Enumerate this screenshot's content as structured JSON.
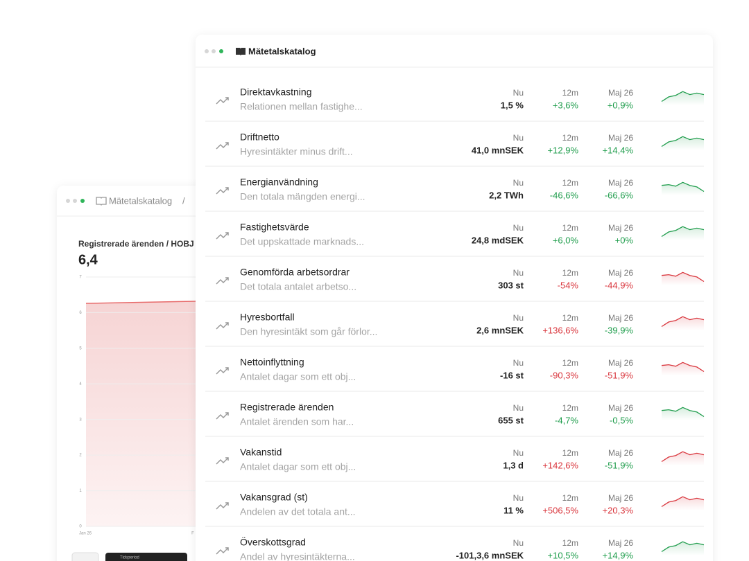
{
  "back_window": {
    "title": "Mätetalskatalog",
    "separator": "/",
    "chart_title": "Registrerade ärenden / HOBJ",
    "current_value": "6,4",
    "yticks": [
      "0",
      "1",
      "2",
      "3",
      "4",
      "5",
      "6",
      "7"
    ],
    "x_labels": [
      "Jan 26",
      "F"
    ],
    "control_label": "Tidsperiod"
  },
  "front_window": {
    "title": "Mätetalskatalog",
    "rows": [
      {
        "name": "Direktavkastning",
        "description": "Relationen mellan fastighe...",
        "now_label": "Nu",
        "now": "1,5 %",
        "m12_label": "12m",
        "m12": "+3,6%",
        "m12_color": "#1f9d4c",
        "month_label": "Maj 26",
        "month": "+0,9%",
        "month_color": "#1f9d4c",
        "spark_color": "#1f9d4c"
      },
      {
        "name": "Driftnetto",
        "description": "Hyresintäkter minus drift...",
        "now_label": "Nu",
        "now": "41,0 mnSEK",
        "m12_label": "12m",
        "m12": "+12,9%",
        "m12_color": "#1f9d4c",
        "month_label": "Maj 26",
        "month": "+14,4%",
        "month_color": "#1f9d4c",
        "spark_color": "#1f9d4c"
      },
      {
        "name": "Energianvändning",
        "description": "Den totala mängden energi...",
        "now_label": "Nu",
        "now": "2,2 TWh",
        "m12_label": "12m",
        "m12": "-46,6%",
        "m12_color": "#1f9d4c",
        "month_label": "Maj 26",
        "month": "-66,6%",
        "month_color": "#1f9d4c",
        "spark_color": "#1f9d4c"
      },
      {
        "name": "Fastighetsvärde",
        "description": "Det uppskattade marknads...",
        "now_label": "Nu",
        "now": "24,8 mdSEK",
        "m12_label": "12m",
        "m12": "+6,0%",
        "m12_color": "#1f9d4c",
        "month_label": "Maj 26",
        "month": "+0%",
        "month_color": "#1f9d4c",
        "spark_color": "#1f9d4c"
      },
      {
        "name": "Genomförda arbetsordrar",
        "description": "Det totala antalet arbetso...",
        "now_label": "Nu",
        "now": "303 st",
        "m12_label": "12m",
        "m12": "-54%",
        "m12_color": "#d9353c",
        "month_label": "Maj 26",
        "month": "-44,9%",
        "month_color": "#d9353c",
        "spark_color": "#d9353c"
      },
      {
        "name": "Hyresbortfall",
        "description": "Den hyresintäkt som går förlor...",
        "now_label": "Nu",
        "now": "2,6 mnSEK",
        "m12_label": "12m",
        "m12": "+136,6%",
        "m12_color": "#d9353c",
        "month_label": "Maj 26",
        "month": "-39,9%",
        "month_color": "#1f9d4c",
        "spark_color": "#d9353c"
      },
      {
        "name": "Nettoinflyttning",
        "description": "Antalet dagar som ett obj...",
        "now_label": "Nu",
        "now": "-16 st",
        "m12_label": "12m",
        "m12": "-90,3%",
        "m12_color": "#d9353c",
        "month_label": "Maj 26",
        "month": "-51,9%",
        "month_color": "#d9353c",
        "spark_color": "#d9353c"
      },
      {
        "name": "Registrerade ärenden",
        "description": "Antalet ärenden som har...",
        "now_label": "Nu",
        "now": "655 st",
        "m12_label": "12m",
        "m12": "-4,7%",
        "m12_color": "#1f9d4c",
        "month_label": "Maj 26",
        "month": "-0,5%",
        "month_color": "#1f9d4c",
        "spark_color": "#1f9d4c"
      },
      {
        "name": "Vakanstid",
        "description": "Antalet dagar som ett obj...",
        "now_label": "Nu",
        "now": "1,3 d",
        "m12_label": "12m",
        "m12": "+142,6%",
        "m12_color": "#d9353c",
        "month_label": "Maj 26",
        "month": "-51,9%",
        "month_color": "#1f9d4c",
        "spark_color": "#d9353c"
      },
      {
        "name": "Vakansgrad (st)",
        "description": "Andelen av det totala ant...",
        "now_label": "Nu",
        "now": "11 %",
        "m12_label": "12m",
        "m12": "+506,5%",
        "m12_color": "#d9353c",
        "month_label": "Maj 26",
        "month": "+20,3%",
        "month_color": "#d9353c",
        "spark_color": "#d9353c"
      },
      {
        "name": "Överskottsgrad",
        "description": "Andel av hyresintäkterna...",
        "now_label": "Nu",
        "now": "-101,3,6 mnSEK",
        "m12_label": "12m",
        "m12": "+10,5%",
        "m12_color": "#1f9d4c",
        "month_label": "Maj 26",
        "month": "+14,9%",
        "month_color": "#1f9d4c",
        "spark_color": "#1f9d4c"
      }
    ]
  }
}
